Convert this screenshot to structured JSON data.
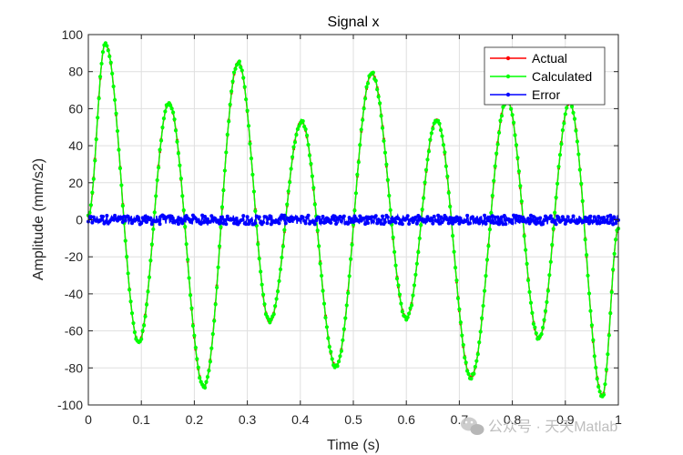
{
  "chart_data": {
    "type": "line",
    "title": "Signal x",
    "xlabel": "Time (s)",
    "ylabel": "Amplitude (mm/s2)",
    "xlim": [
      0,
      1
    ],
    "ylim": [
      -100,
      100
    ],
    "grid": true,
    "legend_placement": "top-right",
    "x_ticks": [
      0,
      0.1,
      0.2,
      0.3,
      0.4,
      0.5,
      0.6,
      0.7,
      0.8,
      0.9,
      1
    ],
    "x_tick_labels": [
      "0",
      "0.1",
      "0.2",
      "0.3",
      "0.4",
      "0.5",
      "0.6",
      "0.7",
      "0.8",
      "0.9",
      "1"
    ],
    "y_ticks": [
      -100,
      -80,
      -60,
      -40,
      -20,
      0,
      20,
      40,
      60,
      80,
      100
    ],
    "y_tick_labels": [
      "-100",
      "-80",
      "-60",
      "-40",
      "-20",
      "0",
      "20",
      "40",
      "60",
      "80",
      "100"
    ],
    "signal_extrema": {
      "t": [
        0.0,
        0.032,
        0.095,
        0.152,
        0.218,
        0.283,
        0.342,
        0.402,
        0.467,
        0.535,
        0.6,
        0.657,
        0.722,
        0.79,
        0.85,
        0.908,
        0.97,
        1.0
      ],
      "v": [
        2,
        95,
        -66,
        63,
        -90,
        85,
        -55,
        53,
        -79,
        79,
        -53,
        54,
        -85,
        65,
        -64,
        63,
        -95,
        -5
      ]
    },
    "error_level": 0,
    "error_spread": 2.5,
    "series": [
      {
        "name": "Actual",
        "color": "#ff0000"
      },
      {
        "name": "Calculated",
        "color": "#00ff00"
      },
      {
        "name": "Error",
        "color": "#0000ff"
      }
    ]
  },
  "watermark": {
    "text": "公众号 · 天天Matlab",
    "icon": "wechat-icon"
  }
}
